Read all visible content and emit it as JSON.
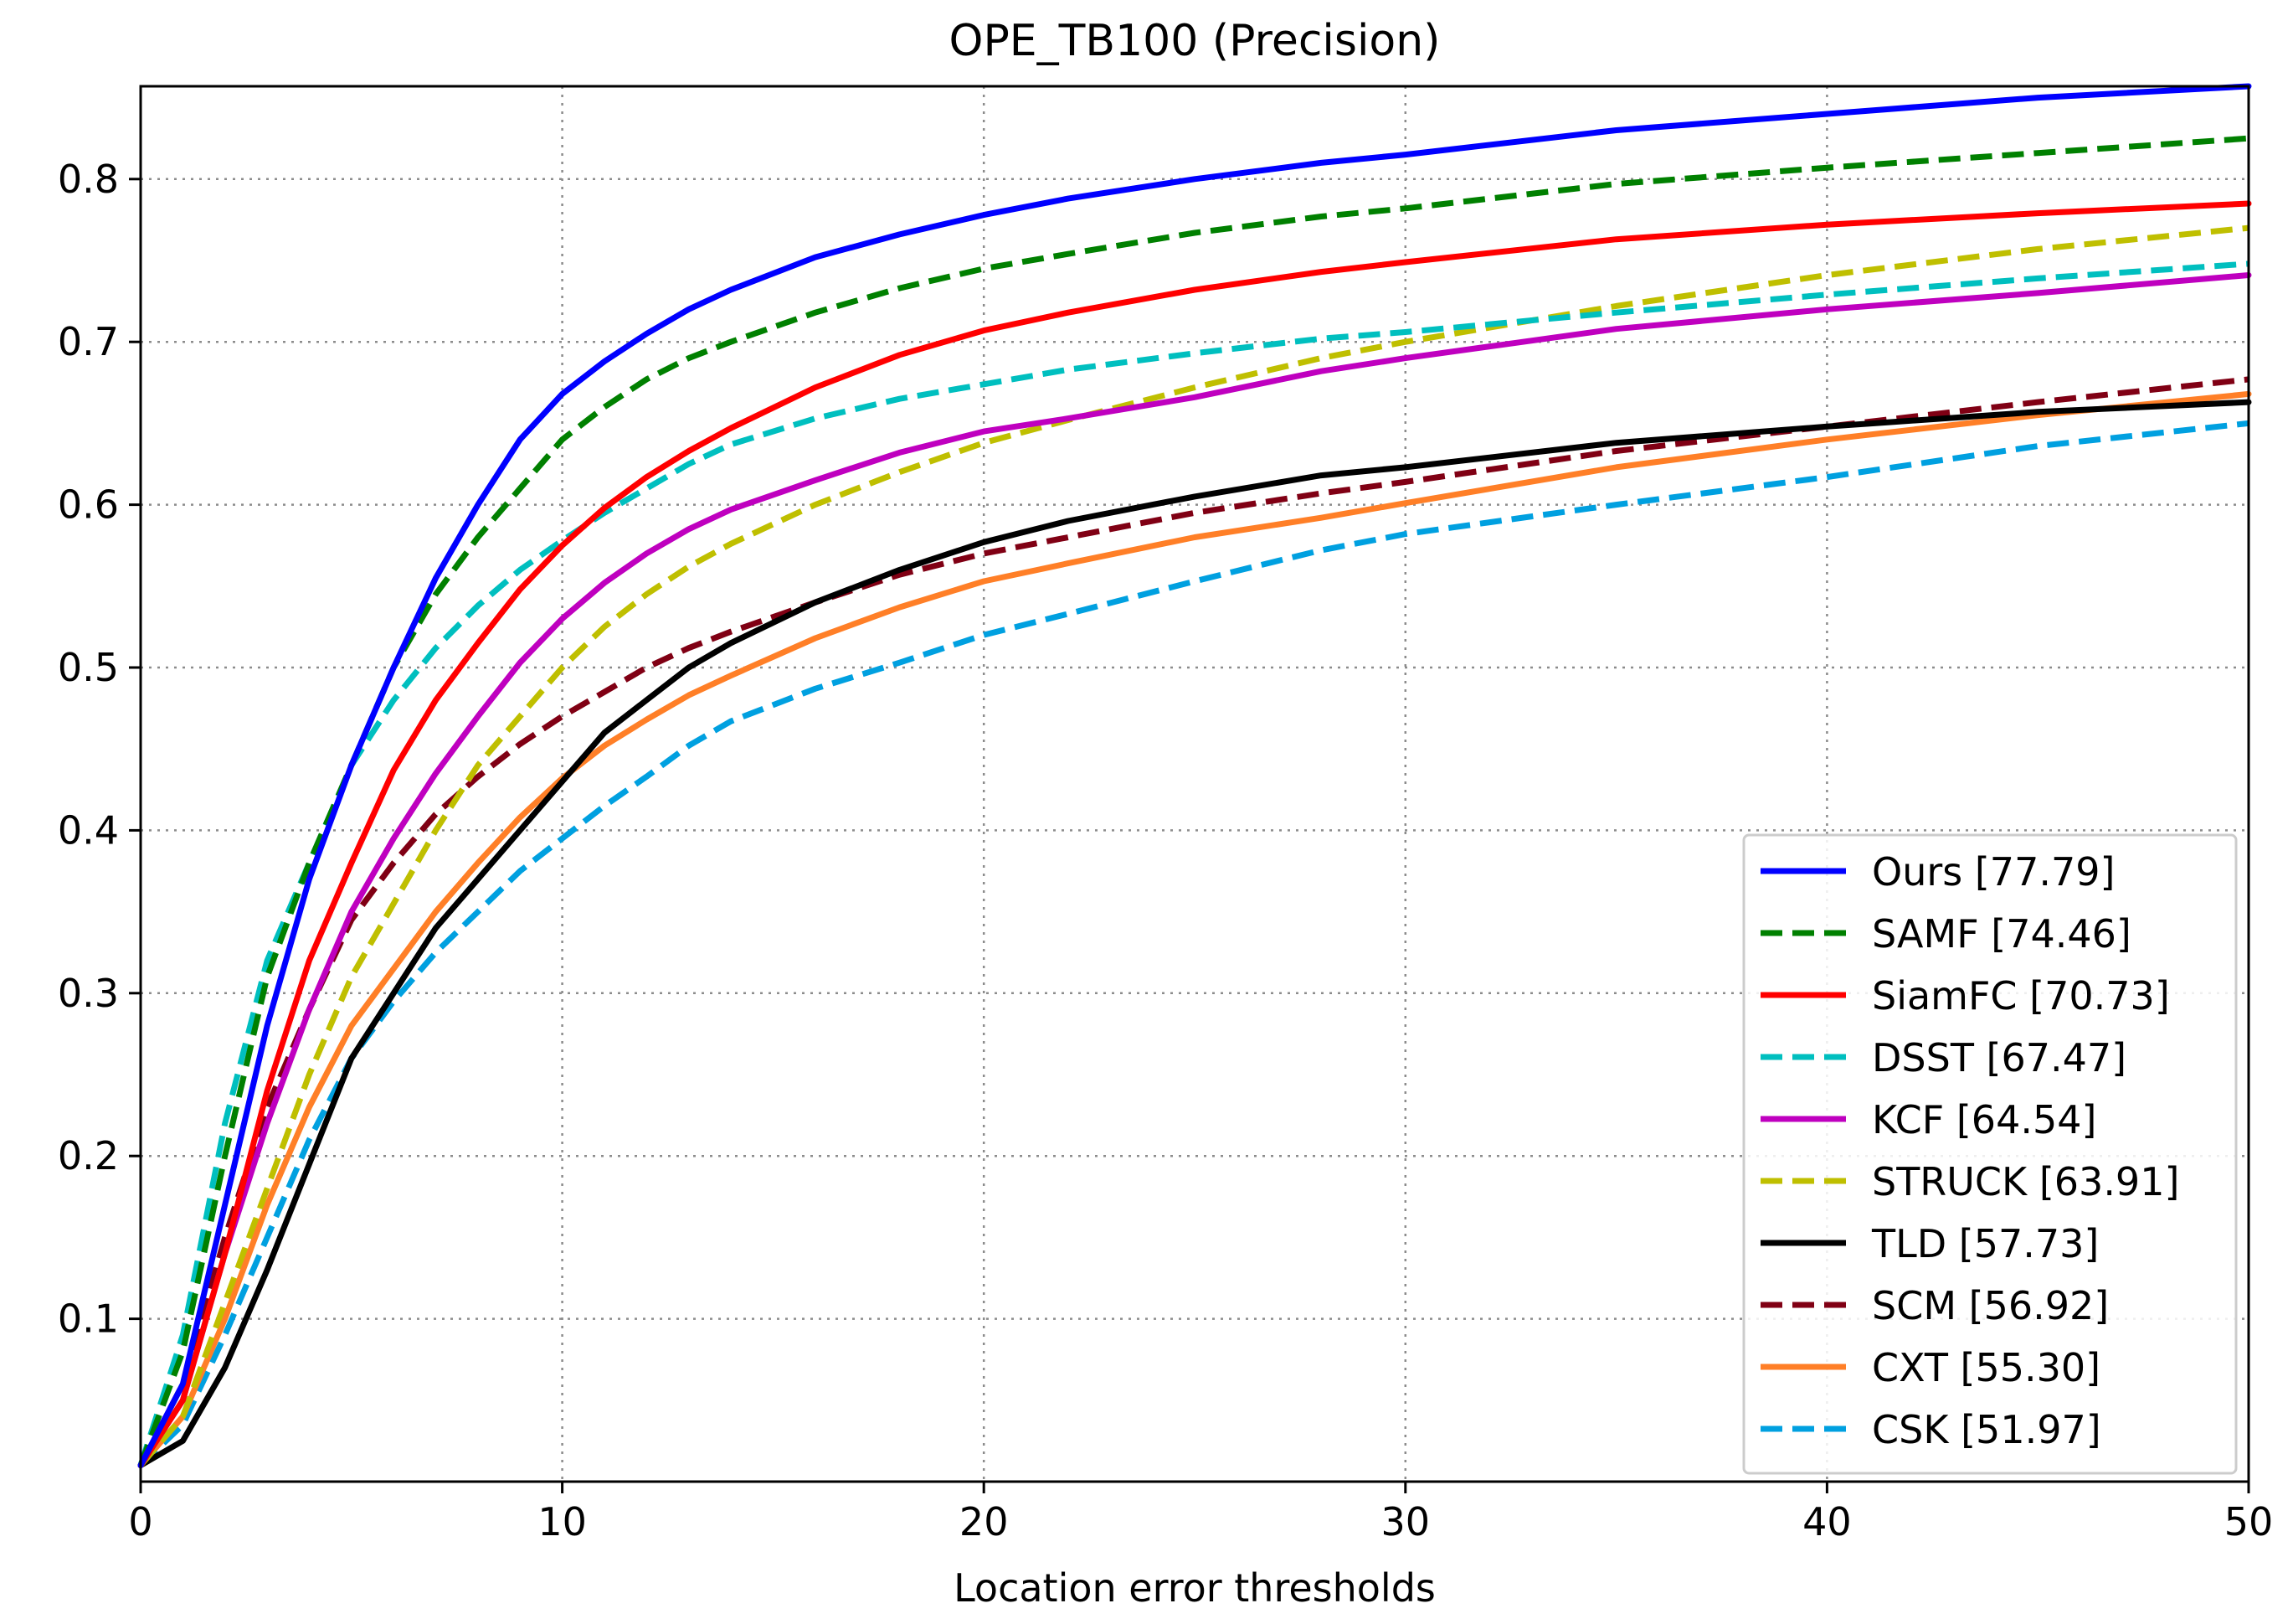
{
  "chart_data": {
    "type": "line",
    "title": "OPE_TB100 (Precision)",
    "xlabel": "Location error thresholds",
    "ylabel": "",
    "xlim": [
      0,
      50
    ],
    "ylim": [
      0.0,
      0.857
    ],
    "x_ticks": [
      0,
      10,
      20,
      30,
      40,
      50
    ],
    "x_tick_labels": [
      "0",
      "10",
      "20",
      "30",
      "40",
      "50"
    ],
    "y_ticks": [
      0.1,
      0.2,
      0.3,
      0.4,
      0.5,
      0.6,
      0.7,
      0.8
    ],
    "y_tick_labels": [
      "0.1",
      "0.2",
      "0.3",
      "0.4",
      "0.5",
      "0.6",
      "0.7",
      "0.8"
    ],
    "grid": true,
    "legend_position": "bottom-right",
    "x": [
      0,
      1,
      2,
      3,
      4,
      5,
      6,
      7,
      8,
      9,
      10,
      11,
      12,
      13,
      14,
      16,
      18,
      20,
      22,
      25,
      28,
      30,
      35,
      40,
      45,
      50
    ],
    "series": [
      {
        "name": "Ours",
        "label": "Ours [77.79]",
        "score": 77.79,
        "color": "#0000ff",
        "dashed": false,
        "values": [
          0.01,
          0.06,
          0.17,
          0.28,
          0.37,
          0.44,
          0.5,
          0.555,
          0.6,
          0.64,
          0.668,
          0.688,
          0.705,
          0.72,
          0.732,
          0.752,
          0.766,
          0.778,
          0.788,
          0.8,
          0.81,
          0.815,
          0.83,
          0.84,
          0.85,
          0.857
        ]
      },
      {
        "name": "SAMF",
        "label": "SAMF [74.46]",
        "score": 74.46,
        "color": "#008000",
        "dashed": true,
        "values": [
          0.01,
          0.08,
          0.2,
          0.31,
          0.38,
          0.44,
          0.5,
          0.545,
          0.58,
          0.61,
          0.64,
          0.66,
          0.677,
          0.69,
          0.7,
          0.718,
          0.733,
          0.745,
          0.754,
          0.767,
          0.777,
          0.782,
          0.797,
          0.807,
          0.816,
          0.825
        ]
      },
      {
        "name": "SiamFC",
        "label": "SiamFC [70.73]",
        "score": 70.73,
        "color": "#ff0000",
        "dashed": false,
        "values": [
          0.01,
          0.05,
          0.14,
          0.24,
          0.32,
          0.38,
          0.437,
          0.48,
          0.515,
          0.548,
          0.575,
          0.598,
          0.617,
          0.633,
          0.647,
          0.672,
          0.692,
          0.707,
          0.718,
          0.732,
          0.743,
          0.749,
          0.763,
          0.772,
          0.779,
          0.785
        ]
      },
      {
        "name": "DSST",
        "label": "DSST [67.47]",
        "score": 67.47,
        "color": "#00bfbf",
        "dashed": true,
        "values": [
          0.01,
          0.09,
          0.22,
          0.32,
          0.38,
          0.44,
          0.48,
          0.512,
          0.538,
          0.56,
          0.578,
          0.595,
          0.61,
          0.625,
          0.637,
          0.653,
          0.665,
          0.674,
          0.683,
          0.693,
          0.702,
          0.706,
          0.718,
          0.729,
          0.739,
          0.748
        ]
      },
      {
        "name": "KCF",
        "label": "KCF [64.54]",
        "score": 64.54,
        "color": "#bf00bf",
        "dashed": false,
        "values": [
          0.01,
          0.05,
          0.14,
          0.22,
          0.29,
          0.35,
          0.395,
          0.435,
          0.47,
          0.503,
          0.53,
          0.552,
          0.57,
          0.585,
          0.597,
          0.615,
          0.632,
          0.645,
          0.653,
          0.666,
          0.682,
          0.69,
          0.708,
          0.72,
          0.73,
          0.741
        ]
      },
      {
        "name": "STRUCK",
        "label": "STRUCK [63.91]",
        "score": 63.91,
        "color": "#bfbf00",
        "dashed": true,
        "values": [
          0.01,
          0.04,
          0.11,
          0.18,
          0.25,
          0.31,
          0.355,
          0.4,
          0.44,
          0.47,
          0.5,
          0.525,
          0.545,
          0.562,
          0.576,
          0.6,
          0.62,
          0.638,
          0.652,
          0.672,
          0.69,
          0.7,
          0.722,
          0.741,
          0.757,
          0.77
        ]
      },
      {
        "name": "TLD",
        "label": "TLD [57.73]",
        "score": 57.73,
        "color": "#000000",
        "dashed": false,
        "values": [
          0.01,
          0.025,
          0.07,
          0.13,
          0.195,
          0.26,
          0.3,
          0.34,
          0.37,
          0.4,
          0.43,
          0.46,
          0.48,
          0.5,
          0.515,
          0.54,
          0.56,
          0.577,
          0.59,
          0.605,
          0.618,
          0.623,
          0.638,
          0.648,
          0.657,
          0.663
        ]
      },
      {
        "name": "SCM",
        "label": "SCM [56.92]",
        "score": 56.92,
        "color": "#800014",
        "dashed": true,
        "values": [
          0.01,
          0.06,
          0.15,
          0.23,
          0.29,
          0.345,
          0.38,
          0.41,
          0.433,
          0.453,
          0.47,
          0.485,
          0.5,
          0.512,
          0.522,
          0.54,
          0.557,
          0.57,
          0.58,
          0.595,
          0.607,
          0.614,
          0.633,
          0.648,
          0.663,
          0.677
        ]
      },
      {
        "name": "CXT",
        "label": "CXT [55.30]",
        "score": 55.3,
        "color": "#ff7f27",
        "dashed": false,
        "values": [
          0.01,
          0.04,
          0.1,
          0.17,
          0.23,
          0.28,
          0.315,
          0.35,
          0.38,
          0.408,
          0.432,
          0.452,
          0.468,
          0.483,
          0.495,
          0.518,
          0.537,
          0.553,
          0.564,
          0.58,
          0.592,
          0.601,
          0.623,
          0.64,
          0.655,
          0.668
        ]
      },
      {
        "name": "CSK",
        "label": "CSK [51.97]",
        "score": 51.97,
        "color": "#00a0e0",
        "dashed": true,
        "values": [
          0.01,
          0.035,
          0.09,
          0.15,
          0.21,
          0.26,
          0.295,
          0.325,
          0.35,
          0.375,
          0.395,
          0.415,
          0.433,
          0.452,
          0.467,
          0.487,
          0.503,
          0.52,
          0.533,
          0.553,
          0.572,
          0.582,
          0.6,
          0.617,
          0.636,
          0.65
        ]
      }
    ]
  }
}
